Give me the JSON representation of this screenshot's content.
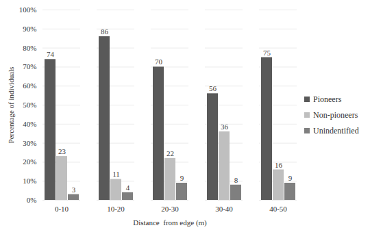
{
  "chart_data": {
    "type": "bar",
    "categories": [
      "0-10",
      "10-20",
      "20-30",
      "30-40",
      "40-50"
    ],
    "series": [
      {
        "name": "Pioneers",
        "color": "#595959",
        "values": [
          74,
          86,
          70,
          56,
          75
        ]
      },
      {
        "name": "Non-pioneers",
        "color": "#bfbfbf",
        "values": [
          23,
          11,
          22,
          36,
          16
        ]
      },
      {
        "name": "Unindentified",
        "color": "#7f7f7f",
        "values": [
          3,
          4,
          9,
          8,
          9
        ]
      }
    ],
    "xlabel": "Distance  from edge (m)",
    "ylabel": "Percentage of individuals",
    "ylim": [
      0,
      100
    ],
    "yticks": [
      {
        "value": 0,
        "label": "0%"
      },
      {
        "value": 10,
        "label": "10%"
      },
      {
        "value": 20,
        "label": "20%"
      },
      {
        "value": 30,
        "label": "30%"
      },
      {
        "value": 40,
        "label": "40%"
      },
      {
        "value": 50,
        "label": "50%"
      },
      {
        "value": 60,
        "label": "60%"
      },
      {
        "value": 70,
        "label": "70%"
      },
      {
        "value": 80,
        "label": "80%"
      },
      {
        "value": 90,
        "label": "90%"
      },
      {
        "value": 100,
        "label": "100%"
      }
    ],
    "grid": true,
    "legend": "right",
    "data_labels": true
  }
}
